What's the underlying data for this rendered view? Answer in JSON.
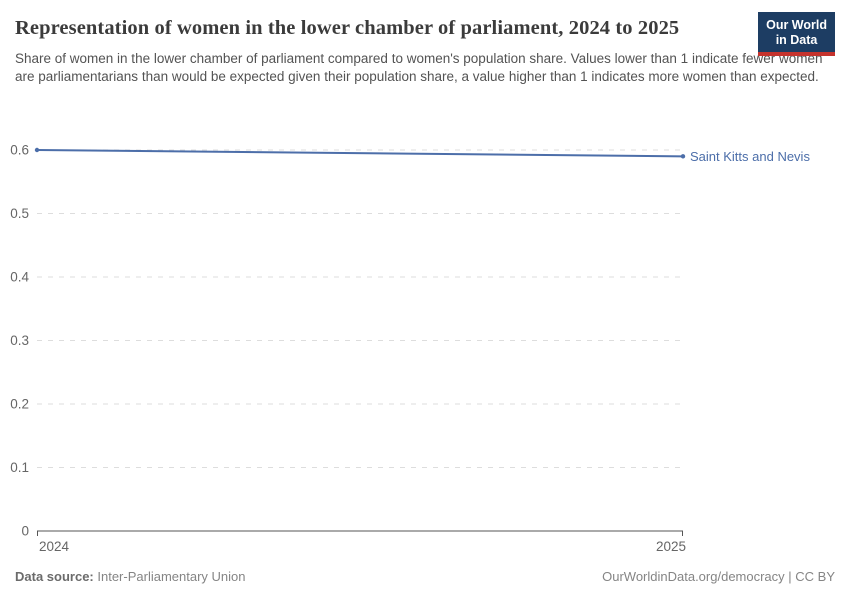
{
  "header": {
    "title": "Representation of women in the lower chamber of parliament, 2024 to 2025",
    "subtitle": "Share of women in the lower chamber of parliament compared to women's population share. Values lower than 1 indicate fewer women are parliamentarians than would be expected given their population share, a value higher than 1 indicates more women than expected.",
    "logo": {
      "line1": "Our World",
      "line2": "in Data",
      "bg_color": "#1d3d63",
      "stripe_color": "#c5332d"
    }
  },
  "chart_data": {
    "type": "line",
    "x": [
      2024,
      2025
    ],
    "x_tick_labels": [
      "2024",
      "2025"
    ],
    "series": [
      {
        "name": "Saint Kitts and Nevis",
        "values": [
          0.6,
          0.59
        ],
        "color": "#4c6ea9"
      }
    ],
    "ylim": [
      0,
      0.6
    ],
    "y_ticks": [
      0,
      0.1,
      0.2,
      0.3,
      0.4,
      0.5,
      0.6
    ],
    "y_tick_labels": [
      "0",
      "0.1",
      "0.2",
      "0.3",
      "0.4",
      "0.5",
      "0.6"
    ],
    "grid": true,
    "grid_color": "#dddddd",
    "axis_color": "#565656",
    "tick_label_color": "#666666",
    "legend_position": "end-of-line"
  },
  "footer": {
    "data_source_label": "Data source:",
    "data_source_value": "Inter-Parliamentary Union",
    "credit": "OurWorldinData.org/democracy | CC BY"
  }
}
